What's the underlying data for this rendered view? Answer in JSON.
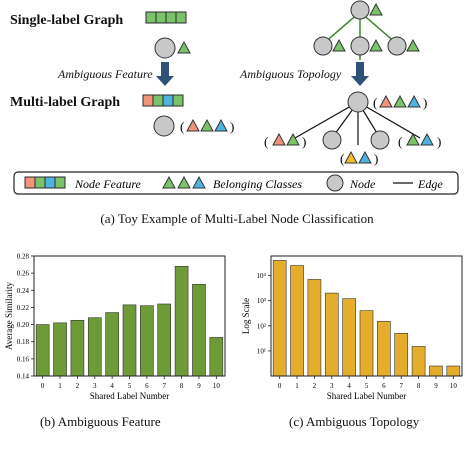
{
  "figure": {
    "top": {
      "single_label_title": "Single-label Graph",
      "multi_label_title": "Multi-label Graph",
      "arrow_left_label": "Ambiguous Feature",
      "arrow_right_label": "Ambiguous Topology",
      "paren_open": "(",
      "paren_close": ")",
      "legend": {
        "node_feature": "Node Feature",
        "belonging_classes": "Belonging Classes",
        "node": "Node",
        "edge": "Edge"
      },
      "caption": "(a)  Toy Example of Multi-Label Node Classification"
    },
    "captions": {
      "b": "(b)  Ambiguous Feature",
      "c": "(c)  Ambiguous Topology"
    },
    "colors": {
      "green": "#7ac36a",
      "orange": "#f0957a",
      "blue": "#4fb3e0",
      "node_gray": "#c8c8c8",
      "tree_green": "#3f8a2e",
      "bar_green": "#6e9b38",
      "bar_gold": "#e4ad2b",
      "arrow_blue": "#2f5178"
    }
  },
  "chart_data": [
    {
      "type": "bar",
      "categories": [
        "0",
        "1",
        "2",
        "3",
        "4",
        "5",
        "6",
        "7",
        "8",
        "9",
        "10"
      ],
      "values": [
        0.2,
        0.202,
        0.205,
        0.208,
        0.214,
        0.223,
        0.222,
        0.224,
        0.268,
        0.247,
        0.185
      ],
      "xlabel": "Shared Label Number",
      "ylabel": "Average Similarity",
      "ylim": [
        0.14,
        0.28
      ],
      "yticks": [
        "0.14",
        "0.16",
        "0.18",
        "0.20",
        "0.22",
        "0.24",
        "0.26",
        "0.28"
      ],
      "grid": false
    },
    {
      "type": "bar",
      "categories": [
        "0",
        "1",
        "2",
        "3",
        "4",
        "5",
        "6",
        "7",
        "8",
        "9",
        "10"
      ],
      "values": [
        40000,
        25000,
        7000,
        2000,
        1200,
        400,
        150,
        50,
        15,
        2.5,
        2.5
      ],
      "xlabel": "Shared Label Number",
      "ylabel": "Log Scale",
      "yscale": "log",
      "ylim": [
        1,
        60000
      ],
      "yticks": [
        "10¹",
        "10²",
        "10³",
        "10⁴"
      ],
      "grid": false
    }
  ]
}
